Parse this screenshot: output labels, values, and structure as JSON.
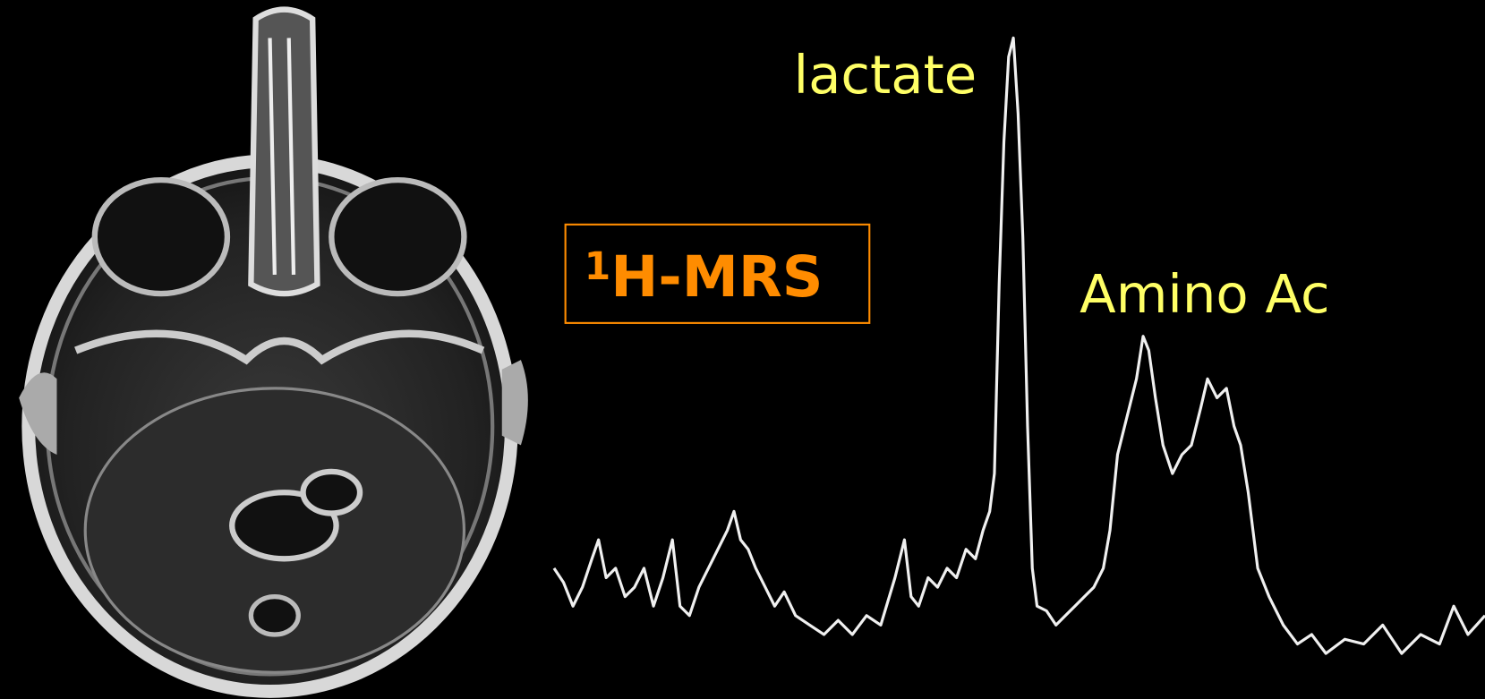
{
  "annotations": [
    {
      "text": "lactate"
    },
    {
      "text": "Amino Ac"
    }
  ],
  "method_box": {
    "superscript": "1",
    "text": "H-MRS"
  }
}
